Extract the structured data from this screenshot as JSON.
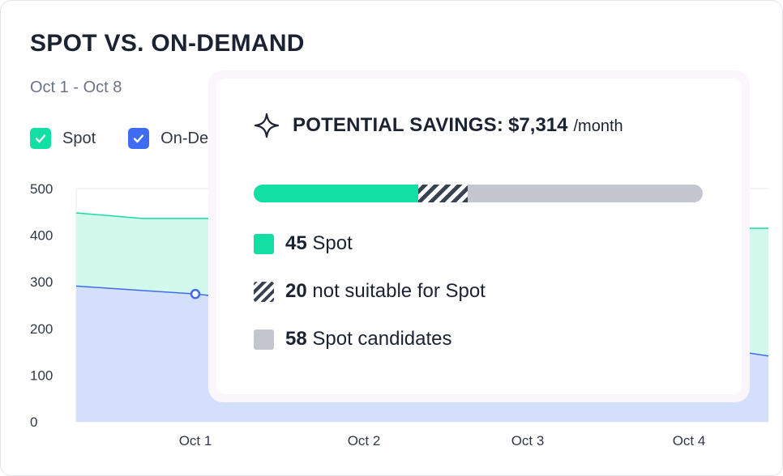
{
  "title": "SPOT VS. ON-DEMAND",
  "date_range": "Oct 1 - Oct 8",
  "legend": [
    {
      "label": "Spot",
      "color": "#12dfa3",
      "checked": true
    },
    {
      "label": "On-De",
      "color": "#3f6bf0",
      "checked": true
    }
  ],
  "chart_data": {
    "type": "area",
    "x": [
      "Oct 1",
      "Oct 2",
      "Oct 3",
      "Oct 4"
    ],
    "y_ticks": [
      "500",
      "400",
      "300",
      "200",
      "100",
      "0"
    ],
    "ylim": [
      0,
      500
    ],
    "grid": true,
    "series": [
      {
        "name": "Spot",
        "color": "#12dfa3",
        "fill": "#d3f8ec",
        "stacked_total_visible": [
          {
            "x": "start",
            "y": 448
          },
          {
            "x": "Oct 0.6",
            "y": 436
          },
          {
            "x": "Oct 1.1",
            "y": 436
          },
          {
            "x": "Oct 4.3",
            "y": 415
          },
          {
            "x": "end",
            "y": 415
          }
        ]
      },
      {
        "name": "On-Demand",
        "color": "#3f6bf0",
        "fill": "#d3dffb",
        "visible": [
          {
            "x": "start",
            "y": 291
          },
          {
            "x": "Oct 1",
            "y": 274
          },
          {
            "x": "Oct 4.3",
            "y": 147
          }
        ]
      }
    ]
  },
  "popover": {
    "icon": "sparkle-icon",
    "label": "POTENTIAL SAVINGS:",
    "amount": "$7,314",
    "unit": "/month",
    "bar": {
      "spot": 45,
      "not_suitable": 20,
      "candidates": 58
    },
    "rows": [
      {
        "value": "45",
        "text": "Spot",
        "swatch": "spot"
      },
      {
        "value": "20",
        "text": "not suitable for Spot",
        "swatch": "hatch"
      },
      {
        "value": "58",
        "text": "Spot candidates",
        "swatch": "candidates"
      }
    ]
  }
}
